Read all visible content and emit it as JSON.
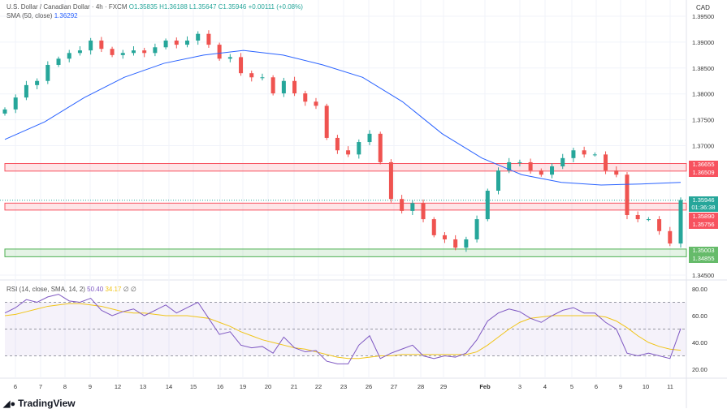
{
  "header": {
    "symbol": "U.S. Dollar / Canadian Dollar · 4h · FXCM",
    "open": "O1.35835",
    "high": "H1.36188",
    "low": "L1.35647",
    "close": "C1.35946",
    "change": "+0.00111 (+0.08%)",
    "sma_label": "SMA (50, close)",
    "sma_value": "1.36292",
    "rsi_label": "RSI (14, close, SMA, 14, 2)",
    "rsi_value": "50.40",
    "rsi_sma_value": "34.17",
    "rsi_extra": "∅ ∅"
  },
  "currency": "CAD",
  "price_labels": {
    "res1_top": "1.36655",
    "res1_bottom": "1.36509",
    "current": "1.35946",
    "countdown": "01:36:38",
    "res2_top": "1.35890",
    "res2_bottom": "1.35756",
    "sup_top": "1.35003",
    "sup_bottom": "1.34855"
  },
  "logo": "TradingView",
  "colors": {
    "up": "#26a69a",
    "down": "#ef5350",
    "sma": "#2962ff",
    "rsi": "#7e57c2",
    "rsi_sma": "#f0c419",
    "resistance": "#f7525f",
    "support": "#4caf50"
  },
  "chart_data": [
    {
      "type": "candlestick",
      "ylim": [
        1.345,
        1.395
      ],
      "yticks": [
        "1.39500",
        "1.39000",
        "1.38500",
        "1.38000",
        "1.37500",
        "1.37000",
        "1.34500"
      ],
      "xticks": [
        "6",
        "7",
        "8",
        "9",
        "12",
        "13",
        "14",
        "15",
        "16",
        "19",
        "20",
        "21",
        "22",
        "23",
        "26",
        "27",
        "28",
        "29",
        "Feb",
        "3",
        "4",
        "5",
        "6",
        "9",
        "10",
        "11"
      ],
      "closes": [
        1.377,
        1.3793,
        1.3817,
        1.3825,
        1.3856,
        1.3868,
        1.3879,
        1.3884,
        1.3903,
        1.3887,
        1.3875,
        1.3879,
        1.3884,
        1.3879,
        1.389,
        1.3903,
        1.3895,
        1.3903,
        1.3916,
        1.3895,
        1.3868,
        1.3871,
        1.384,
        1.3832,
        1.3832,
        1.3801,
        1.3825,
        1.3801,
        1.3785,
        1.3777,
        1.3715,
        1.3691,
        1.3683,
        1.3707,
        1.3723,
        1.3668,
        1.3597,
        1.3574,
        1.3589,
        1.3558,
        1.3527,
        1.3519,
        1.3503,
        1.3519,
        1.3558,
        1.3613,
        1.3652,
        1.3668,
        1.3668,
        1.3652,
        1.3644,
        1.366,
        1.3676,
        1.3691,
        1.3683,
        1.3683,
        1.3652,
        1.3644,
        1.3566,
        1.3558,
        1.3558,
        1.3535,
        1.3511,
        1.3595
      ],
      "sma50": [
        1.3712,
        1.3746,
        1.3793,
        1.3832,
        1.3859,
        1.3875,
        1.3884,
        1.3875,
        1.3856,
        1.3832,
        1.3785,
        1.3723,
        1.3676,
        1.3644,
        1.3629,
        1.3624,
        1.3626,
        1.3629
      ],
      "zones": [
        {
          "kind": "resistance",
          "from": 1.36509,
          "to": 1.36655
        },
        {
          "kind": "resistance",
          "from": 1.35756,
          "to": 1.3589
        },
        {
          "kind": "support",
          "from": 1.34855,
          "to": 1.35003
        }
      ],
      "current_price": 1.35946
    },
    {
      "type": "line",
      "title": "RSI (14, close, SMA, 14, 2)",
      "ylim": [
        15,
        85
      ],
      "yticks": [
        "80.00",
        "60.00",
        "40.00",
        "20.00"
      ],
      "levels": [
        70,
        50,
        30
      ],
      "rsi": [
        62,
        66,
        72,
        70,
        74,
        76,
        71,
        70,
        73,
        64,
        60,
        63,
        65,
        60,
        64,
        68,
        62,
        66,
        70,
        58,
        46,
        48,
        38,
        36,
        37,
        32,
        44,
        36,
        33,
        34,
        26,
        24,
        24,
        38,
        45,
        28,
        32,
        35,
        38,
        30,
        28,
        30,
        29,
        32,
        42,
        56,
        62,
        65,
        63,
        58,
        55,
        60,
        64,
        66,
        62,
        62,
        55,
        50,
        32,
        30,
        32,
        30,
        28,
        50.4
      ],
      "rsi_sma": [
        60,
        61,
        63,
        65,
        67,
        68,
        69,
        69,
        68,
        67,
        65,
        63,
        62,
        62,
        61,
        60,
        60,
        60,
        59,
        58,
        55,
        52,
        48,
        45,
        42,
        40,
        38,
        36,
        35,
        33,
        31,
        29,
        28,
        28,
        29,
        30,
        30,
        31,
        31,
        31,
        31,
        31,
        31,
        31,
        33,
        38,
        44,
        50,
        55,
        58,
        59,
        60,
        60,
        60,
        60,
        60,
        59,
        56,
        51,
        45,
        40,
        37,
        35,
        34.17
      ]
    }
  ]
}
